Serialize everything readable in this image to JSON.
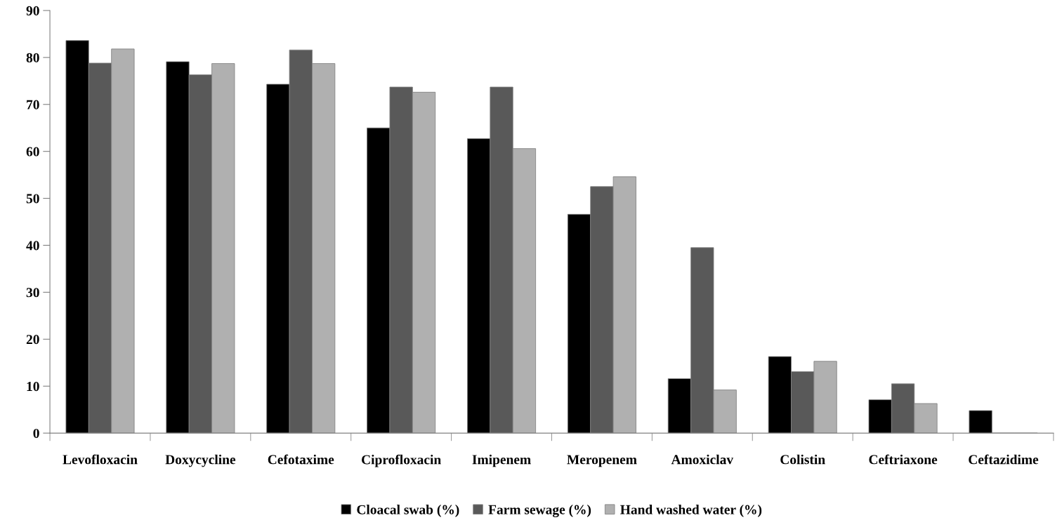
{
  "chart_data": {
    "type": "bar",
    "categories": [
      "Levofloxacin",
      "Doxycycline",
      "Cefotaxime",
      "Ciprofloxacin",
      "Imipenem",
      "Meropenem",
      "Amoxiclav",
      "Colistin",
      "Ceftriaxone",
      "Ceftazidime"
    ],
    "series": [
      {
        "name": "Cloacal swab (%)",
        "color": "#000000",
        "values": [
          83.6,
          79.1,
          74.3,
          65.0,
          62.7,
          46.6,
          11.6,
          16.3,
          7.1,
          4.8
        ]
      },
      {
        "name": "Farm sewage (%)",
        "color": "#595959",
        "values": [
          78.8,
          76.3,
          81.6,
          73.7,
          73.7,
          52.5,
          39.5,
          13.1,
          10.5,
          0
        ]
      },
      {
        "name": "Hand washed water (%)",
        "color": "#b0b0b0",
        "values": [
          81.8,
          78.7,
          78.7,
          72.6,
          60.6,
          54.6,
          9.2,
          15.3,
          6.3,
          0
        ]
      }
    ],
    "ylim": [
      0,
      90
    ],
    "yticks": [
      0,
      10,
      20,
      30,
      40,
      50,
      60,
      70,
      80,
      90
    ],
    "grid": false,
    "legend": "bottom"
  }
}
